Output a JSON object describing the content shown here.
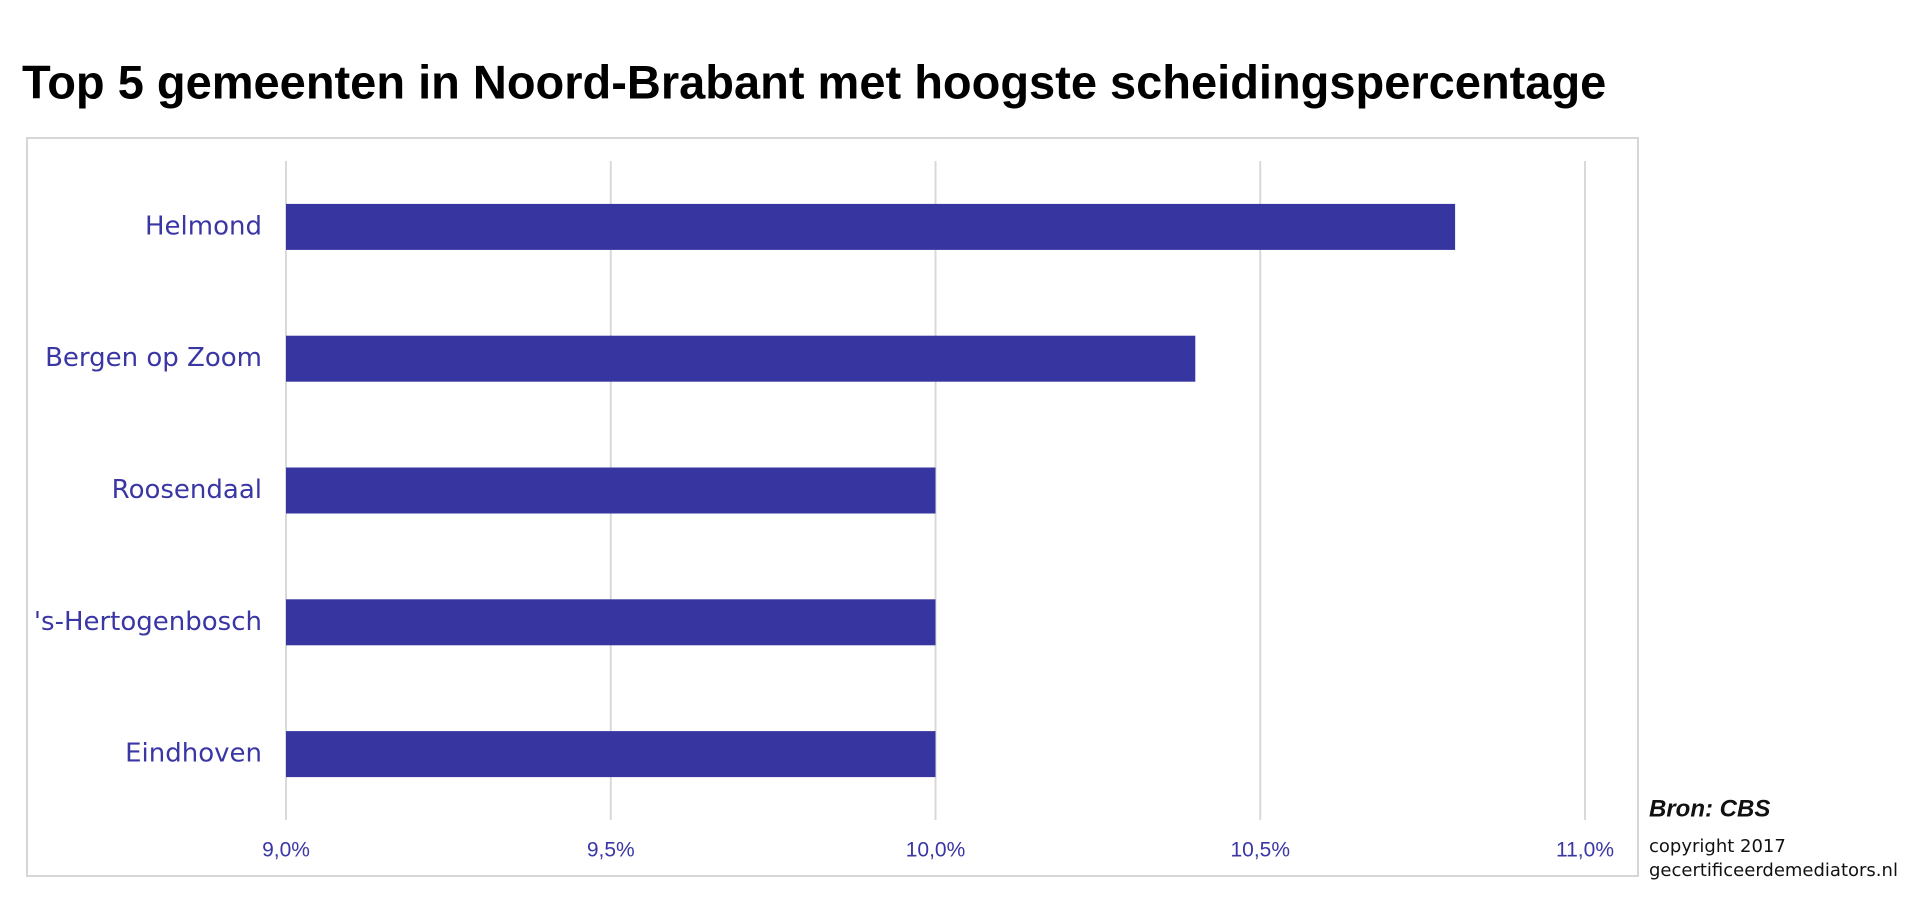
{
  "chart_data": {
    "type": "bar",
    "orientation": "horizontal",
    "title": "Top 5 gemeenten in Noord-Brabant met hoogste scheidingspercentage",
    "categories": [
      "Helmond",
      "Bergen op Zoom",
      "Roosendaal",
      "'s-Hertogenbosch",
      "Eindhoven"
    ],
    "values": [
      10.8,
      10.4,
      10.0,
      10.0,
      10.0
    ],
    "color": "#3735a0",
    "xlim": [
      9,
      11
    ],
    "xticks": [
      {
        "value": 9,
        "label": "9,0%"
      },
      {
        "value": 9.5,
        "label": "9,5%"
      },
      {
        "value": 10,
        "label": "10,0%"
      },
      {
        "value": 10.5,
        "label": "10,5%"
      },
      {
        "value": 11,
        "label": "11,0%"
      }
    ],
    "grid": true,
    "annotations": [
      "Bron: CBS",
      "copyright 2017",
      "gecertificeerdemediators.nl"
    ]
  }
}
